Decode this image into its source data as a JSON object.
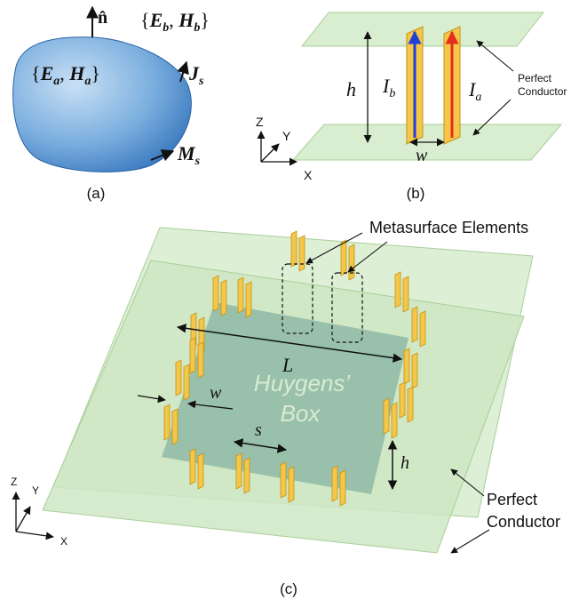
{
  "panel_a": {
    "caption": "(a)",
    "normal": "n̂",
    "outside_fields": "{E_b, H_b}",
    "outside_fields_parts": {
      "E": "E",
      "Esub": "b",
      "H": "H",
      "Hsub": "b"
    },
    "inside_fields_parts": {
      "E": "E",
      "Esub": "a",
      "H": "H",
      "Hsub": "a"
    },
    "js": {
      "main": "J",
      "sub": "s"
    },
    "ms": {
      "main": "M",
      "sub": "s"
    }
  },
  "panel_b": {
    "caption": "(b)",
    "h_label": "h",
    "ib": {
      "main": "I",
      "sub": "b"
    },
    "ia": {
      "main": "I",
      "sub": "a"
    },
    "w_label": "w",
    "perfect_line1": "Perfect",
    "perfect_line2": "Conductor",
    "axes": {
      "z": "Z",
      "y": "Y",
      "x": "X"
    }
  },
  "panel_c": {
    "caption": "(c)",
    "meta_label": "Metasurface Elements",
    "L_label": "L",
    "huygens_line1": "Huygens’",
    "huygens_line2": "Box",
    "w_label": "w",
    "s_label": "s",
    "h_label": "h",
    "perfect_line1": "Perfect",
    "perfect_line2": "Conductor",
    "axes": {
      "z": "Z",
      "y": "Y",
      "x": "X"
    }
  },
  "colors": {
    "blob_light": "#bcd7f0",
    "blob_dark": "#2f77c4",
    "plate": "#d9edd0",
    "plate_edge": "#a9cf97",
    "strip": "#f4c64a",
    "strip_edge": "#c39512",
    "current_blue": "#1f3fd8",
    "current_red": "#e32d1d",
    "box": "#96b9a8"
  }
}
